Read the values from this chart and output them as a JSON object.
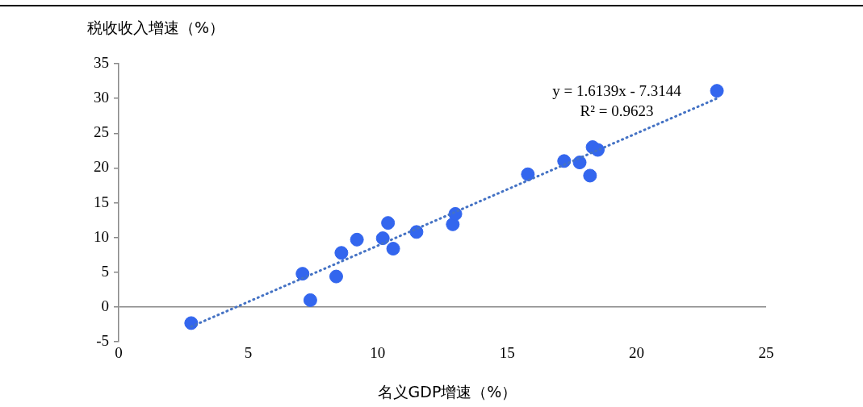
{
  "chart_data": {
    "type": "scatter",
    "ylabel": "税收收入增速（%）",
    "xlabel": "名义GDP增速（%）",
    "xlim": [
      0,
      25
    ],
    "xticks": [
      0,
      5,
      10,
      15,
      20,
      25
    ],
    "ylim": [
      -5,
      35
    ],
    "yticks": [
      -5,
      0,
      5,
      10,
      15,
      20,
      25,
      30,
      35
    ],
    "marker": "circle",
    "series": [
      {
        "color": "#3366ee",
        "x": [
          2.8,
          7.1,
          7.4,
          8.4,
          8.6,
          9.2,
          10.2,
          10.4,
          10.6,
          11.5,
          12.9,
          13.0,
          15.8,
          17.2,
          17.8,
          18.2,
          18.3,
          18.5,
          23.1
        ],
        "values": [
          -2.3,
          4.8,
          1.0,
          4.4,
          7.8,
          9.7,
          9.9,
          12.1,
          8.4,
          10.8,
          11.9,
          13.4,
          19.1,
          21.0,
          20.8,
          18.9,
          23.0,
          22.6,
          31.1
        ]
      },
      {
        "type": "line",
        "color": "#4472c4",
        "line_style": "dotted",
        "marker": "none",
        "x": [
          2.8,
          23.1
        ],
        "values": [
          -2.8,
          30.0
        ]
      }
    ],
    "annotations": [
      "y = 1.6139x - 7.3144",
      "R² = 0.9623"
    ]
  }
}
